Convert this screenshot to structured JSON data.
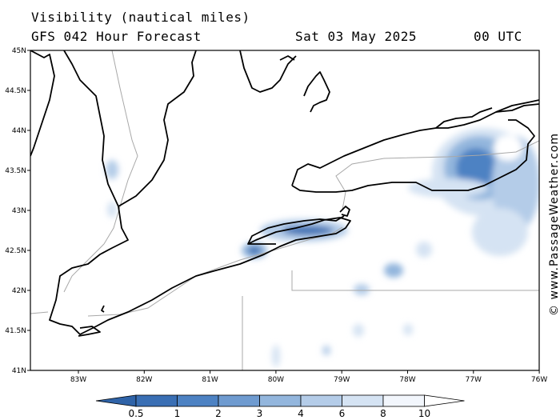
{
  "header": {
    "title": "Visibility (nautical miles)",
    "model": "GFS 042 Hour Forecast",
    "date": "Sat 03 May 2025",
    "time": "00 UTC"
  },
  "credit": "© www.PassageWeather.com",
  "lat_ticks": [
    "45N",
    "44.5N",
    "44N",
    "43.5N",
    "43N",
    "42.5N",
    "42N",
    "41.5N",
    "41N"
  ],
  "lon_ticks": [
    "83W",
    "82W",
    "81W",
    "80W",
    "79W",
    "78W",
    "77W",
    "76W"
  ],
  "colorbar": {
    "labels": [
      "0.5",
      "1",
      "2",
      "3",
      "4",
      "6",
      "8",
      "10"
    ],
    "colors": [
      "#3a6fb4",
      "#4d82c3",
      "#6f9bd0",
      "#93b6dd",
      "#b4cce8",
      "#d5e3f3",
      "#f2f6fc"
    ]
  }
}
